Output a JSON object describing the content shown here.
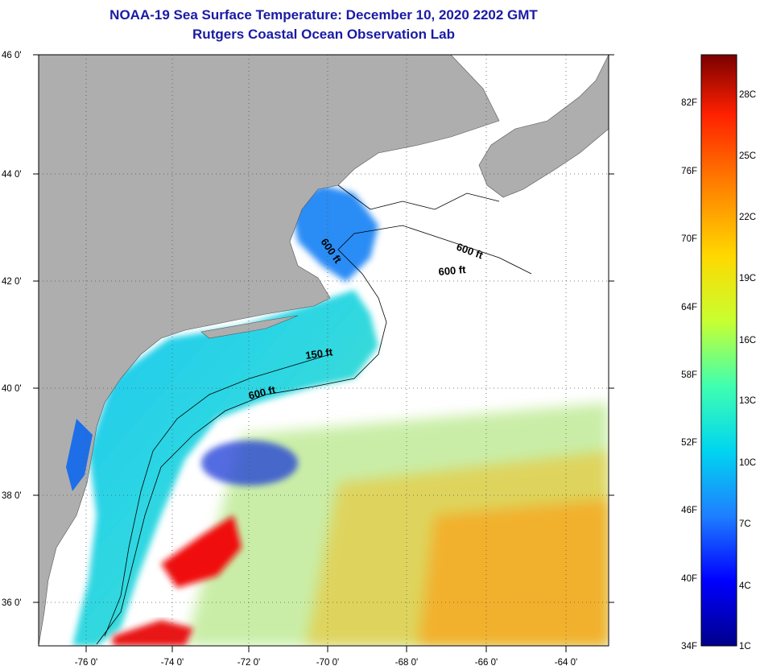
{
  "header": {
    "title": "NOAA-19 Sea Surface Temperature:  December 10, 2020 2202 GMT",
    "subtitle": "Rutgers Coastal Ocean Observation Lab"
  },
  "axes": {
    "lat_labels": [
      "46 0'",
      "44 0'",
      "42 0'",
      "40 0'",
      "38 0'",
      "36 0'"
    ],
    "lon_labels": [
      "-76 0'",
      "-74 0'",
      "-72 0'",
      "-70 0'",
      "-68 0'",
      "-66 0'",
      "-64 0'"
    ]
  },
  "contour_labels": [
    "600 ft",
    "600 ft",
    "600 ft",
    "150 ft",
    "600 ft"
  ],
  "colorbar": {
    "f_labels": [
      "82F",
      "76F",
      "70F",
      "64F",
      "58F",
      "52F",
      "46F",
      "40F",
      "34F"
    ],
    "c_labels": [
      "28C",
      "25C",
      "22C",
      "19C",
      "16C",
      "13C",
      "10C",
      "7C",
      "4C",
      "1C"
    ],
    "colors": [
      "#00008b",
      "#0000ff",
      "#1e7fff",
      "#00d5f0",
      "#40ffb0",
      "#c8ff30",
      "#ffd800",
      "#ff8000",
      "#ff2000",
      "#7a0000"
    ]
  },
  "colors": {
    "land": "#aeaeae",
    "no_data": "#ffffff",
    "grid": "#666666",
    "title": "#1a1aa6"
  }
}
